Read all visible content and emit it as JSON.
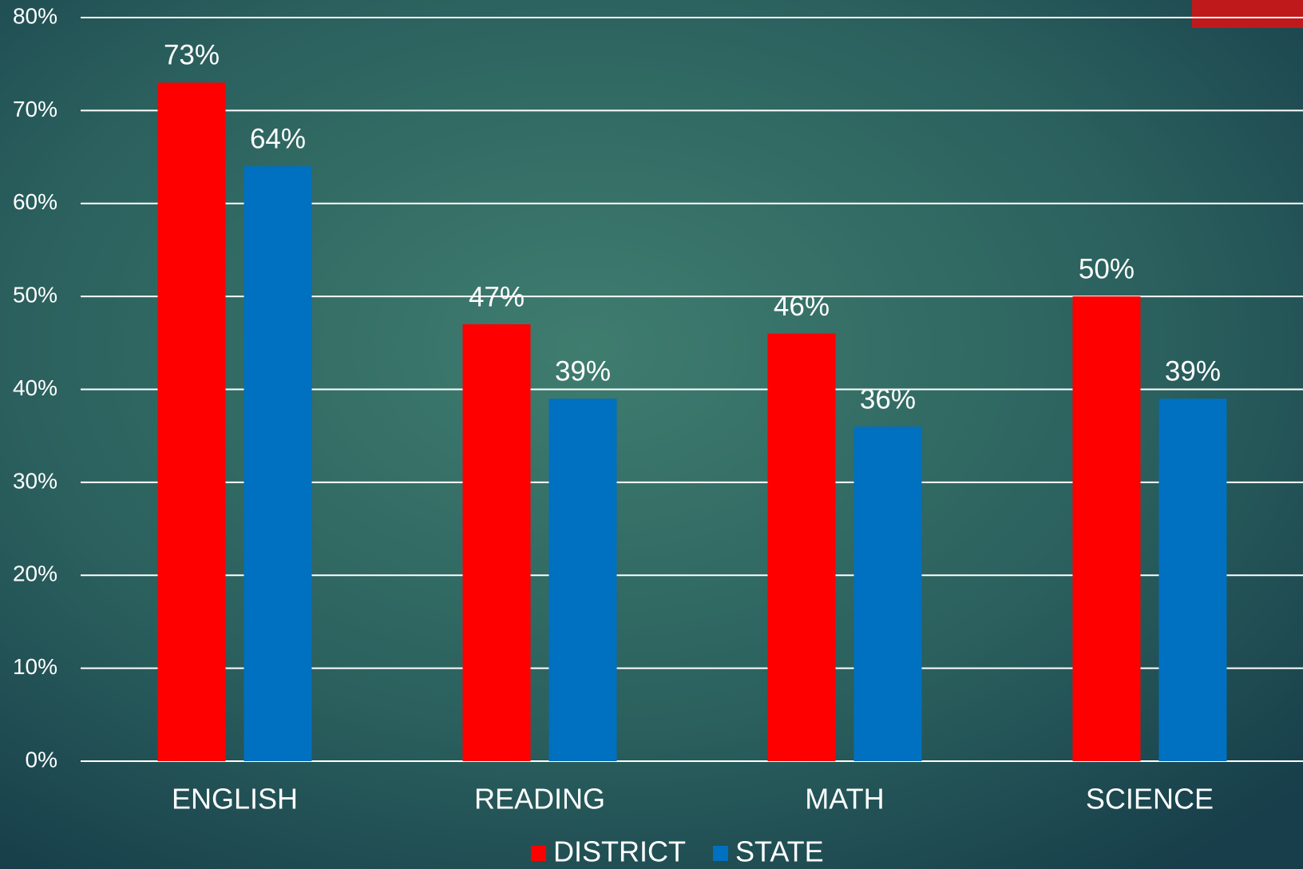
{
  "chart_data": {
    "type": "bar",
    "categories": [
      "ENGLISH",
      "READING",
      "MATH",
      "SCIENCE"
    ],
    "series": [
      {
        "name": "DISTRICT",
        "color": "#ff0000",
        "values": [
          73,
          47,
          46,
          50
        ],
        "value_labels": [
          "73%",
          "47%",
          "46%",
          "50%"
        ]
      },
      {
        "name": "STATE",
        "color": "#0070c0",
        "values": [
          64,
          39,
          36,
          39
        ],
        "value_labels": [
          "64%",
          "39%",
          "36%",
          "39%"
        ]
      }
    ],
    "ylim": [
      0,
      80
    ],
    "yticks": [
      {
        "value": 0,
        "label": "0%"
      },
      {
        "value": 10,
        "label": "10%"
      },
      {
        "value": 20,
        "label": "20%"
      },
      {
        "value": 30,
        "label": "30%"
      },
      {
        "value": 40,
        "label": "40%"
      },
      {
        "value": 50,
        "label": "50%"
      },
      {
        "value": 60,
        "label": "60%"
      },
      {
        "value": 70,
        "label": "70%"
      },
      {
        "value": 80,
        "label": "80%"
      }
    ],
    "grid": true,
    "legend": "bottom"
  }
}
